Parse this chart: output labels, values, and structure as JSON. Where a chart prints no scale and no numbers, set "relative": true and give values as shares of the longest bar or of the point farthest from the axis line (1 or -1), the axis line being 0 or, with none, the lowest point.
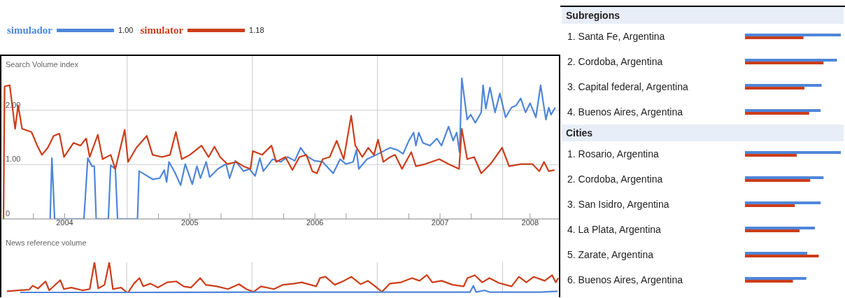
{
  "chart_data": [
    {
      "type": "line",
      "ylabel": "Search Volume index",
      "legend": "top left",
      "grid": "y",
      "marker": "none",
      "line_style": "solid",
      "annotations": [
        "1.00",
        "1.18"
      ],
      "xlim": [
        2004,
        2008.45
      ],
      "ylim": [
        0,
        3
      ],
      "xticks": [
        {
          "value": 2004.25,
          "label": null
        },
        {
          "value": 2004.5,
          "label": "2004"
        },
        {
          "value": 2004.75,
          "label": null
        },
        {
          "value": 2005.25,
          "label": null
        },
        {
          "value": 2005.5,
          "label": "2005"
        },
        {
          "value": 2005.75,
          "label": null
        },
        {
          "value": 2006.25,
          "label": null
        },
        {
          "value": 2006.5,
          "label": "2006"
        },
        {
          "value": 2006.75,
          "label": null
        },
        {
          "value": 2007.25,
          "label": null
        },
        {
          "value": 2007.5,
          "label": "2007"
        },
        {
          "value": 2007.75,
          "label": null
        },
        {
          "value": 2008.22,
          "label": "2008"
        }
      ],
      "yticks": [
        0,
        {
          "value": 1,
          "label": "1.00"
        },
        {
          "value": 2,
          "label": "2.00"
        }
      ],
      "ref_lines": [
        {
          "axis": "x",
          "value": 2005,
          "color": "#c8c8c8"
        },
        {
          "axis": "x",
          "value": 2006,
          "color": "#c8c8c8"
        },
        {
          "axis": "x",
          "value": 2007,
          "color": "#c8c8c8"
        },
        {
          "axis": "x",
          "value": 2008,
          "color": "#c8c8c8"
        }
      ],
      "series": [
        {
          "name": "simulador",
          "color": "#4f86d9",
          "x": [
            2004.384,
            2004.398,
            2004.42,
            2004.654,
            2004.685,
            2004.718,
            2004.737,
            2004.752,
            2004.849,
            2004.868,
            2004.905,
            2004.923,
            2005.082,
            2005.095,
            2005.147,
            2005.203,
            2005.259,
            2005.296,
            2005.315,
            2005.334,
            2005.38,
            2005.427,
            2005.464,
            2005.52,
            2005.557,
            2005.585,
            2005.631,
            2005.659,
            2005.724,
            2005.79,
            2005.818,
            2005.864,
            2005.929,
            2005.976,
            2006.022,
            2006.06,
            2006.088,
            2006.162,
            2006.227,
            2006.283,
            2006.339,
            2006.386,
            2006.432,
            2006.497,
            2006.562,
            2006.646,
            2006.702,
            2006.749,
            2006.805,
            2006.832,
            2006.851,
            2006.916,
            2006.991,
            2007.065,
            2007.102,
            2007.158,
            2007.205,
            2007.251,
            2007.289,
            2007.307,
            2007.33,
            2007.363,
            2007.419,
            2007.475,
            2007.512,
            2007.568,
            2007.605,
            2007.633,
            2007.656,
            2007.674,
            2007.717,
            2007.745,
            2007.782,
            2007.829,
            2007.844,
            2007.866,
            2007.899,
            2007.94,
            2007.978,
            2008.024,
            2008.071,
            2008.108,
            2008.145,
            2008.183,
            2008.22,
            2008.266,
            2008.304,
            2008.346,
            2008.369,
            2008.387,
            2008.421
          ],
          "values": [
            0,
            1.12,
            0,
            0,
            1.12,
            0.97,
            0.97,
            0,
            0,
            0.99,
            0.92,
            0,
            0,
            0.88,
            0.81,
            0.73,
            0.75,
            0.9,
            0.68,
            1.05,
            0.86,
            0.62,
            1.01,
            0.64,
            0.97,
            0.75,
            1.05,
            0.77,
            0.92,
            1.01,
            0.75,
            1.07,
            0.88,
            0.92,
            0.79,
            1.12,
            0.88,
            1.1,
            1.05,
            1.14,
            1.07,
            1.31,
            1.16,
            1.07,
            1.05,
            0.84,
            1.1,
            1.01,
            1.05,
            1.27,
            0.92,
            1.1,
            1.18,
            1.27,
            1.31,
            1.27,
            1.2,
            1.44,
            1.59,
            1.35,
            1.59,
            1.4,
            1.35,
            1.48,
            1.35,
            1.7,
            1.44,
            1.59,
            1.23,
            2.59,
            1.83,
            1.92,
            1.77,
            1.96,
            2.46,
            2.03,
            2.42,
            1.96,
            2.31,
            1.87,
            2.05,
            2.09,
            2.22,
            1.96,
            2.13,
            1.87,
            2.46,
            1.83,
            2.05,
            1.92,
            2.05
          ]
        },
        {
          "name": "simulator",
          "color": "#cc3d1a",
          "x": [
            2004.011,
            2004.02,
            2004.061,
            2004.104,
            2004.128,
            2004.16,
            2004.235,
            2004.281,
            2004.318,
            2004.365,
            2004.412,
            2004.458,
            2004.495,
            2004.57,
            2004.626,
            2004.672,
            2004.7,
            2004.765,
            2004.803,
            2004.868,
            2004.905,
            2004.98,
            2005.007,
            2005.073,
            2005.156,
            2005.203,
            2005.278,
            2005.342,
            2005.389,
            2005.436,
            2005.501,
            2005.594,
            2005.65,
            2005.697,
            2005.743,
            2005.799,
            2005.873,
            2005.929,
            2005.985,
            2006.004,
            2006.078,
            2006.153,
            2006.19,
            2006.264,
            2006.32,
            2006.376,
            2006.432,
            2006.479,
            2006.516,
            2006.562,
            2006.618,
            2006.674,
            2006.73,
            2006.79,
            2006.823,
            2006.879,
            2006.926,
            2006.972,
            2007.004,
            2007.047,
            2007.102,
            2007.14,
            2007.196,
            2007.27,
            2007.307,
            2007.382,
            2007.494,
            2007.568,
            2007.652,
            2007.674,
            2007.717,
            2007.773,
            2007.829,
            2007.903,
            2007.996,
            2008.052,
            2008.145,
            2008.238,
            2008.294,
            2008.331,
            2008.369,
            2008.415
          ],
          "values": [
            0,
            2.44,
            2.46,
            1.66,
            2.09,
            1.66,
            1.6,
            1.35,
            1.18,
            1.31,
            1.53,
            1.57,
            1.14,
            1.4,
            1.35,
            1.48,
            1.14,
            1.55,
            1.1,
            1.18,
            0.92,
            1.64,
            1.05,
            1.31,
            1.53,
            1.18,
            1.14,
            1.18,
            1.6,
            1.1,
            1.18,
            1.35,
            1.14,
            1.33,
            1.14,
            1.01,
            1.05,
            0.97,
            0.92,
            1.25,
            1.18,
            1.35,
            1.05,
            1.14,
            0.9,
            1.14,
            1.18,
            0.88,
            0.84,
            1.1,
            1.14,
            1.44,
            1.1,
            1.9,
            1.35,
            1.14,
            1.31,
            1.18,
            1.46,
            1.05,
            1.14,
            1.18,
            0.92,
            1.23,
            0.97,
            1.01,
            1.1,
            1.01,
            0.92,
            1.66,
            1.1,
            1.14,
            0.84,
            1.01,
            1.31,
            0.97,
            1.01,
            1.01,
            0.88,
            1.05,
            0.88,
            0.9
          ]
        }
      ]
    },
    {
      "type": "line",
      "ylabel": "News reference volume",
      "relative": true,
      "marker": "none",
      "line_style": "solid",
      "xlim": [
        2004,
        2008.45
      ],
      "ref_lines": [
        {
          "axis": "x",
          "value": 2005,
          "color": "#c8c8c8"
        },
        {
          "axis": "x",
          "value": 2006,
          "color": "#c8c8c8"
        },
        {
          "axis": "x",
          "value": 2007,
          "color": "#c8c8c8"
        },
        {
          "axis": "x",
          "value": 2008,
          "color": "#c8c8c8"
        }
      ],
      "series": [
        {
          "color": "#cc3d1a",
          "x": [
            2004.044,
            2004.132,
            2004.22,
            2004.25,
            2004.293,
            2004.352,
            2004.382,
            2004.47,
            2004.499,
            2004.558,
            2004.646,
            2004.705,
            2004.743,
            2004.773,
            2004.823,
            2004.861,
            2004.89,
            2004.955,
            2005.008,
            2005.058,
            2005.102,
            2005.132,
            2005.19,
            2005.249,
            2005.323,
            2005.396,
            2005.455,
            2005.514,
            2005.587,
            2005.631,
            2005.72,
            2005.808,
            2005.896,
            2005.955,
            2006.014,
            2006.072,
            2006.175,
            2006.249,
            2006.337,
            2006.396,
            2006.513,
            2006.543,
            2006.587,
            2006.661,
            2006.734,
            2006.793,
            2006.867,
            2006.925,
            2006.984,
            2007.037,
            2007.101,
            2007.19,
            2007.278,
            2007.337,
            2007.396,
            2007.44,
            2007.514,
            2007.602,
            2007.69,
            2007.72,
            2007.779,
            2007.838,
            2007.896,
            2007.97,
            2008.072,
            2008.131,
            2008.19,
            2008.249,
            2008.337,
            2008.396,
            2008.425,
            2008.445
          ],
          "values": [
            0.06,
            0.09,
            0.11,
            0.24,
            0.15,
            0.38,
            0.09,
            0.42,
            0.13,
            0.18,
            0.09,
            0.13,
            1,
            0.15,
            0.27,
            1,
            0.13,
            0.18,
            0,
            0.31,
            0.49,
            0.22,
            0.31,
            0.18,
            0.35,
            0.38,
            0.22,
            0.18,
            0.49,
            0.27,
            0.22,
            0.13,
            0.29,
            0.13,
            0.04,
            0.22,
            0.13,
            0.27,
            0.31,
            0.35,
            0.22,
            0.49,
            0.53,
            0.27,
            0.4,
            0.53,
            0.29,
            0.4,
            0.22,
            0.04,
            0.31,
            0.35,
            0.49,
            0.4,
            0.59,
            0.35,
            0.4,
            0.27,
            0.22,
            0.49,
            0.58,
            0.35,
            0.49,
            0.33,
            0.22,
            0.53,
            0.35,
            0.53,
            0.4,
            0.58,
            0.35,
            0.49
          ]
        },
        {
          "color": "#4f86d9",
          "x": [
            2004.15,
            2005.0,
            2006.0,
            2007.0,
            2007.74,
            2007.767,
            2007.79,
            2007.855,
            2007.9,
            2008.3,
            2008.44
          ],
          "values": [
            0.02,
            0.02,
            0.03,
            0.03,
            0.03,
            0.24,
            0.03,
            0.09,
            0.03,
            0.03,
            0.06
          ]
        }
      ]
    },
    {
      "type": "bar",
      "orientation": "horizontal",
      "relative": true,
      "title": "Subregions",
      "categories": [
        "1. Santa Fe, Argentina",
        "2. Cordoba, Argentina",
        "3. Capital federal, Argentina",
        "4. Buenos Aires, Argentina"
      ],
      "series": [
        {
          "color": "#4f86d9",
          "values": [
            1,
            0.96,
            0.8,
            0.79
          ]
        },
        {
          "color": "#cc3d1a",
          "values": [
            0.61,
            0.82,
            0.62,
            0.67
          ]
        }
      ]
    },
    {
      "type": "bar",
      "orientation": "horizontal",
      "relative": true,
      "title": "Cities",
      "categories": [
        "1. Rosario, Argentina",
        "2. Cordoba, Argentina",
        "3. San Isidro, Argentina",
        "4. La Plata, Argentina",
        "5. Zarate, Argentina",
        "6. Buenos Aires, Argentina"
      ],
      "series": [
        {
          "color": "#4f86d9",
          "values": [
            1,
            0.82,
            0.79,
            0.73,
            0.65,
            0.64
          ]
        },
        {
          "color": "#cc3d1a",
          "values": [
            0.54,
            0.68,
            0.52,
            0.57,
            0.77,
            0.5
          ]
        }
      ]
    }
  ]
}
